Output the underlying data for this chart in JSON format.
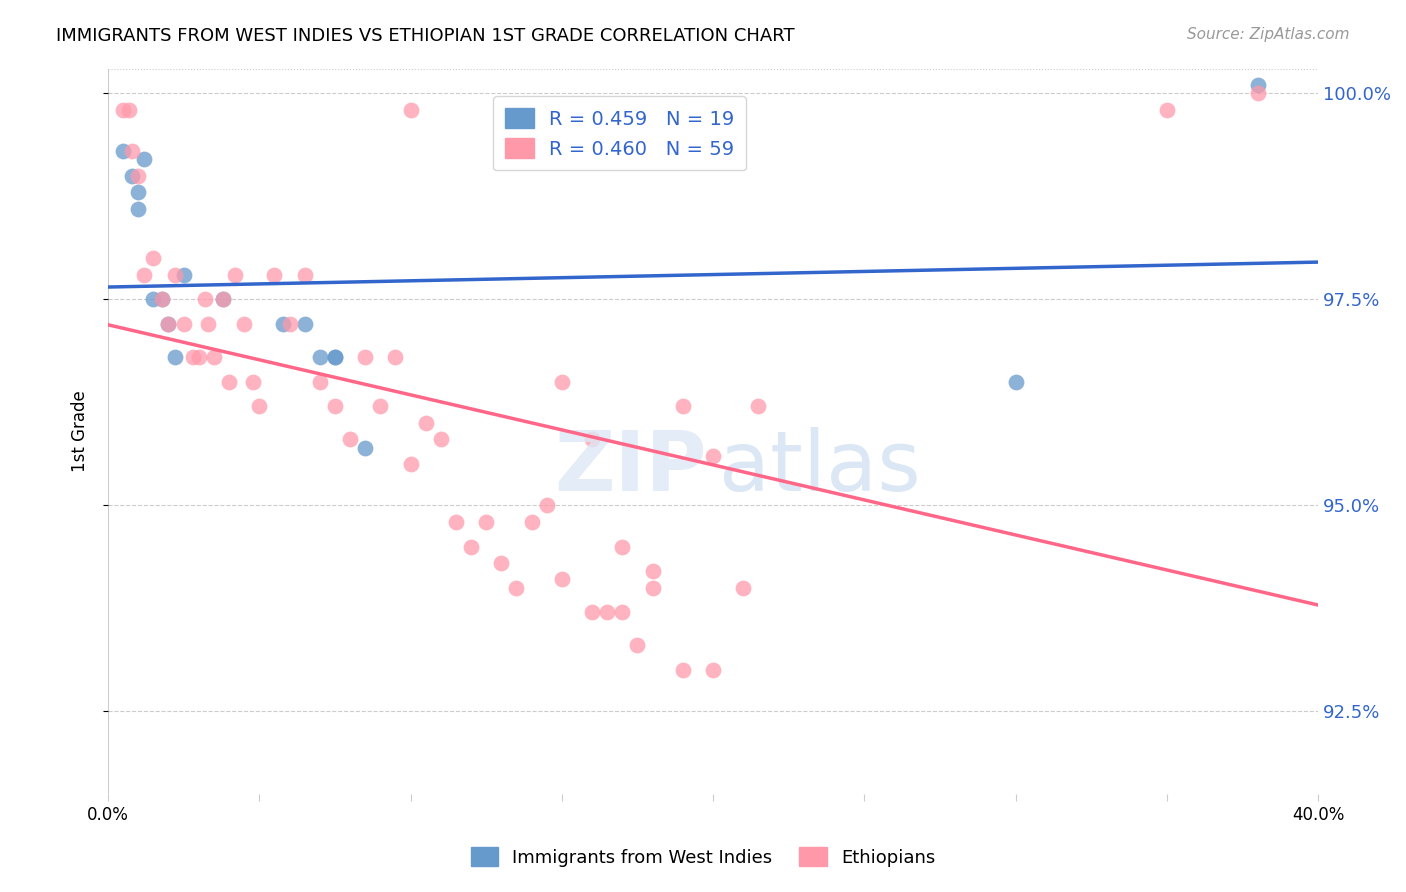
{
  "title": "IMMIGRANTS FROM WEST INDIES VS ETHIOPIAN 1ST GRADE CORRELATION CHART",
  "source": "Source: ZipAtlas.com",
  "ylabel_label": "1st Grade",
  "ylabel_ticks": [
    "92.5%",
    "95.0%",
    "97.5%",
    "100.0%"
  ],
  "legend_blue_label": "R = 0.459   N = 19",
  "legend_pink_label": "R = 0.460   N = 59",
  "bottom_legend_blue": "Immigrants from West Indies",
  "bottom_legend_pink": "Ethiopians",
  "blue_color": "#6699CC",
  "pink_color": "#FF99AA",
  "blue_line_color": "#3366CC",
  "pink_line_color": "#FF6688",
  "xlim": [
    0.0,
    0.4
  ],
  "ylim": [
    0.915,
    1.003
  ],
  "blue_points_x": [
    0.005,
    0.008,
    0.01,
    0.01,
    0.012,
    0.015,
    0.018,
    0.02,
    0.022,
    0.025,
    0.038,
    0.058,
    0.065,
    0.07,
    0.075,
    0.075,
    0.085,
    0.3,
    0.38
  ],
  "blue_points_y": [
    0.993,
    0.99,
    0.988,
    0.986,
    0.992,
    0.975,
    0.975,
    0.972,
    0.968,
    0.978,
    0.975,
    0.972,
    0.972,
    0.968,
    0.968,
    0.968,
    0.957,
    0.965,
    1.001
  ],
  "pink_points_x": [
    0.005,
    0.007,
    0.008,
    0.01,
    0.012,
    0.015,
    0.018,
    0.02,
    0.022,
    0.025,
    0.028,
    0.03,
    0.032,
    0.033,
    0.035,
    0.038,
    0.04,
    0.042,
    0.045,
    0.048,
    0.05,
    0.055,
    0.06,
    0.065,
    0.07,
    0.075,
    0.08,
    0.085,
    0.09,
    0.095,
    0.1,
    0.105,
    0.11,
    0.115,
    0.12,
    0.125,
    0.13,
    0.135,
    0.14,
    0.145,
    0.15,
    0.16,
    0.165,
    0.17,
    0.175,
    0.18,
    0.19,
    0.2,
    0.215,
    0.1,
    0.15,
    0.16,
    0.17,
    0.18,
    0.19,
    0.2,
    0.21,
    0.38,
    0.35
  ],
  "pink_points_y": [
    0.998,
    0.998,
    0.993,
    0.99,
    0.978,
    0.98,
    0.975,
    0.972,
    0.978,
    0.972,
    0.968,
    0.968,
    0.975,
    0.972,
    0.968,
    0.975,
    0.965,
    0.978,
    0.972,
    0.965,
    0.962,
    0.978,
    0.972,
    0.978,
    0.965,
    0.962,
    0.958,
    0.968,
    0.962,
    0.968,
    0.955,
    0.96,
    0.958,
    0.948,
    0.945,
    0.948,
    0.943,
    0.94,
    0.948,
    0.95,
    0.941,
    0.937,
    0.937,
    0.937,
    0.933,
    0.942,
    0.93,
    0.93,
    0.962,
    0.998,
    0.965,
    0.958,
    0.945,
    0.94,
    0.962,
    0.956,
    0.94,
    1.0,
    0.998
  ]
}
